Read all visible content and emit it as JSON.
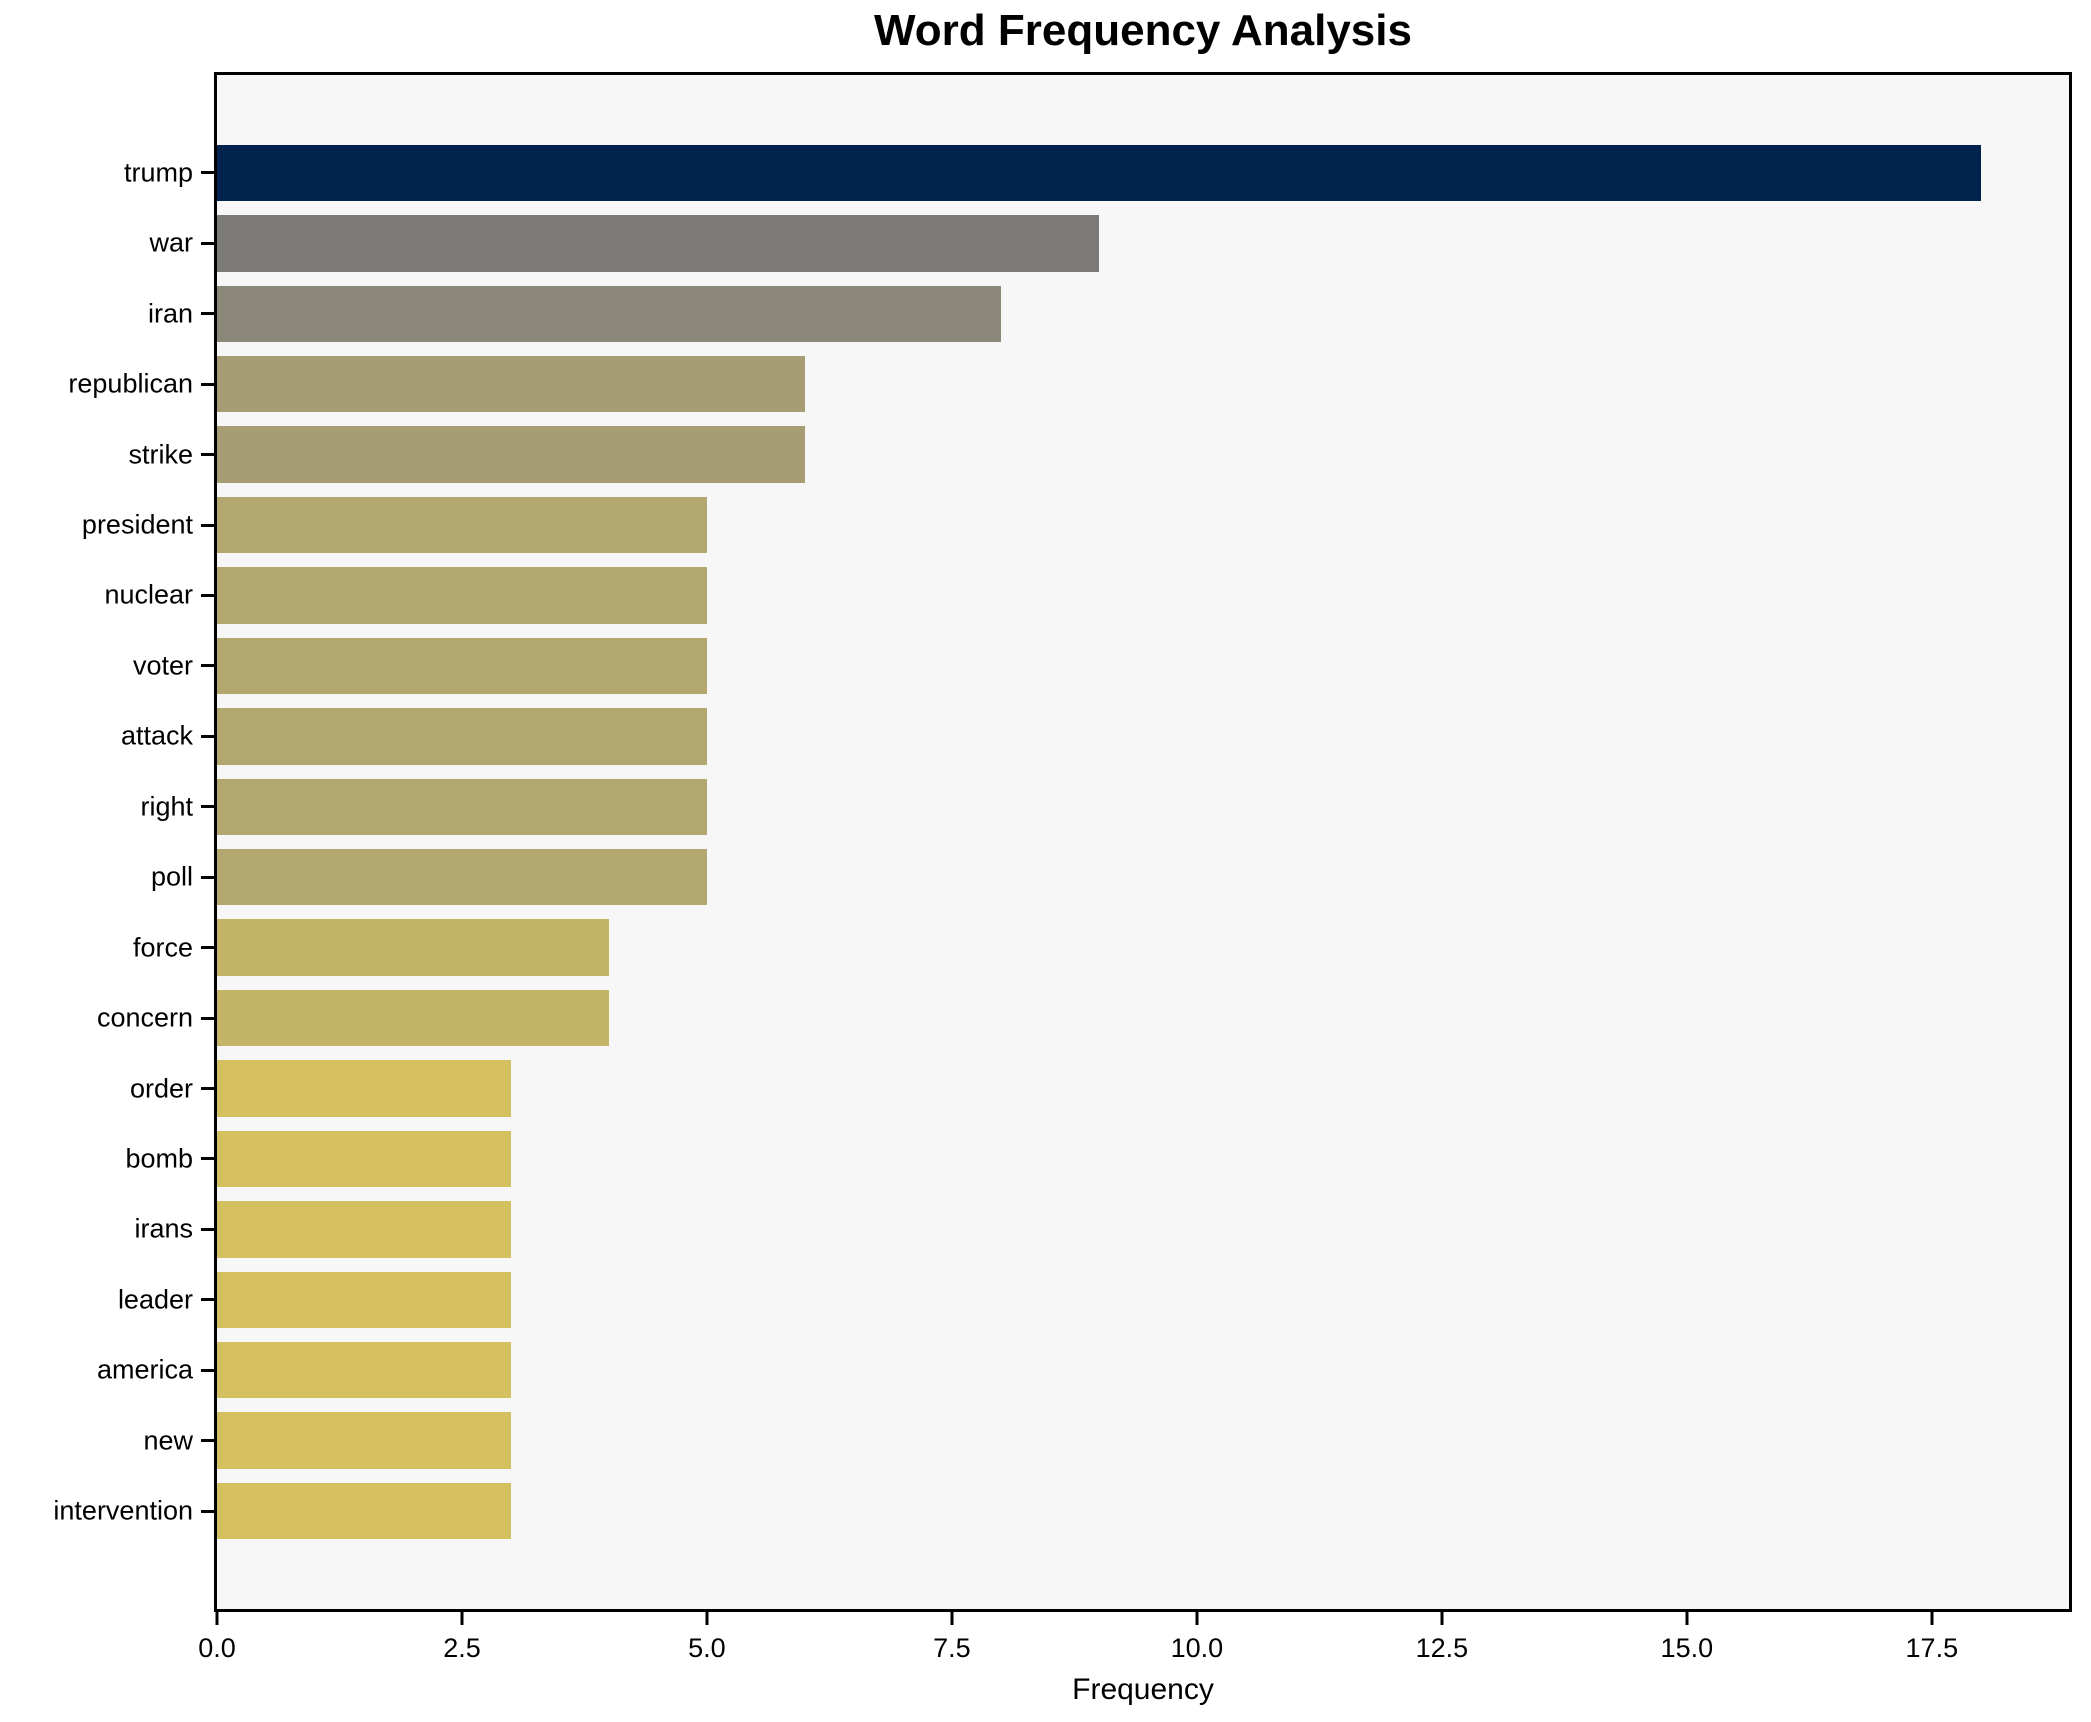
{
  "title": "Word Frequency Analysis",
  "chart_data": {
    "type": "bar",
    "orientation": "horizontal",
    "title": "Word Frequency Analysis",
    "xlabel": "Frequency",
    "ylabel": "",
    "categories": [
      "trump",
      "war",
      "iran",
      "republican",
      "strike",
      "president",
      "nuclear",
      "voter",
      "attack",
      "right",
      "poll",
      "force",
      "concern",
      "order",
      "bomb",
      "irans",
      "leader",
      "america",
      "new",
      "intervention"
    ],
    "values": [
      18,
      9,
      8,
      6,
      6,
      5,
      5,
      5,
      5,
      5,
      5,
      4,
      4,
      3,
      3,
      3,
      3,
      3,
      3,
      3
    ],
    "bar_colors": [
      "#02234e",
      "#7c7b78",
      "#8b8779",
      "#a69d74",
      "#a69d74",
      "#b2a76f",
      "#b2a76f",
      "#b2a76f",
      "#b2a76f",
      "#b2a76f",
      "#b2a76f",
      "#c4b467",
      "#c4b467",
      "#d4c05f",
      "#d4c05f",
      "#d4c05f",
      "#d4c05f",
      "#d4c05f",
      "#d4c05f",
      "#d4c05f"
    ],
    "xlim": [
      0,
      18.9
    ],
    "xticks": [
      0,
      2.5,
      5,
      7.5,
      10,
      12.5,
      15,
      17.5
    ],
    "xtick_labels": [
      "0.0",
      "2.5",
      "5.0",
      "7.5",
      "10.0",
      "12.5",
      "15.0",
      "17.5"
    ],
    "grid": false,
    "legend": null,
    "bar_height_fraction": 0.8,
    "y_units_total": 21.78,
    "y_first_center_offset_units": 1.39,
    "plot_bg": "#f7f7f7",
    "fig_bg": "#ffffff",
    "spine_color": "#000000",
    "text_color": "#000000"
  }
}
